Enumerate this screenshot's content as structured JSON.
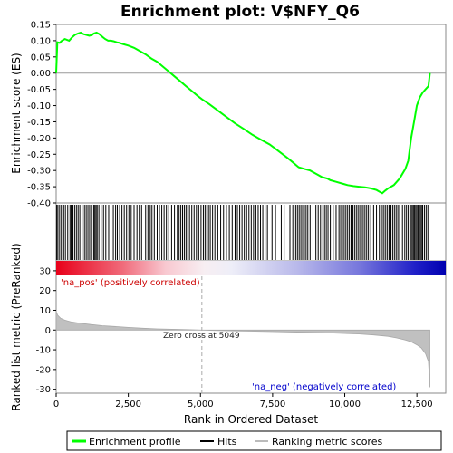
{
  "chart_data": {
    "type": "line",
    "title": "Enrichment plot: V$NFY_Q6",
    "xlabel": "Rank in Ordered Dataset",
    "xlim": [
      0,
      13500
    ],
    "x_ticks": [
      0,
      2500,
      5000,
      7500,
      10000,
      12500
    ],
    "x_tick_labels": [
      "0",
      "2,500",
      "5,000",
      "7,500",
      "10,000",
      "12,500"
    ],
    "grid": false,
    "legend_position": "bottom",
    "legend": [
      "Enrichment profile",
      "Hits",
      "Ranking metric scores"
    ],
    "enrichment_panel": {
      "ylabel": "Enrichment score (ES)",
      "ylim": [
        -0.4,
        0.15
      ],
      "y_ticks": [
        0.15,
        0.1,
        0.05,
        0.0,
        -0.05,
        -0.1,
        -0.15,
        -0.2,
        -0.25,
        -0.3,
        -0.35,
        -0.4
      ],
      "y_tick_labels": [
        "0.15",
        "0.10",
        "0.05",
        "0.00",
        "-0.05",
        "-0.10",
        "-0.15",
        "-0.20",
        "-0.25",
        "-0.30",
        "-0.35",
        "-0.40"
      ],
      "series": [
        {
          "name": "Enrichment profile",
          "color": "#00ff00",
          "x": [
            0,
            40,
            120,
            200,
            300,
            450,
            550,
            650,
            750,
            850,
            950,
            1050,
            1150,
            1250,
            1300,
            1400,
            1500,
            1600,
            1700,
            1800,
            1900,
            2000,
            2100,
            2200,
            2300,
            2500,
            2700,
            2900,
            3100,
            3300,
            3500,
            3700,
            3900,
            4100,
            4300,
            4500,
            4700,
            4900,
            5049,
            5300,
            5600,
            5900,
            6200,
            6500,
            6800,
            7100,
            7400,
            7700,
            8000,
            8200,
            8400,
            8600,
            8800,
            9000,
            9200,
            9400,
            9500,
            9700,
            9900,
            10100,
            10300,
            10500,
            10700,
            10900,
            11100,
            11200,
            11300,
            11400,
            11500,
            11600,
            11700,
            11800,
            11900,
            12000,
            12100,
            12200,
            12300,
            12400,
            12500,
            12600,
            12700,
            12800,
            12900,
            12950
          ],
          "values": [
            0.0,
            0.095,
            0.093,
            0.1,
            0.105,
            0.1,
            0.11,
            0.118,
            0.122,
            0.125,
            0.12,
            0.118,
            0.115,
            0.118,
            0.122,
            0.125,
            0.12,
            0.112,
            0.105,
            0.1,
            0.1,
            0.098,
            0.095,
            0.093,
            0.09,
            0.085,
            0.078,
            0.068,
            0.058,
            0.045,
            0.035,
            0.02,
            0.005,
            -0.01,
            -0.025,
            -0.04,
            -0.055,
            -0.07,
            -0.08,
            -0.095,
            -0.115,
            -0.135,
            -0.155,
            -0.172,
            -0.19,
            -0.205,
            -0.22,
            -0.24,
            -0.26,
            -0.275,
            -0.29,
            -0.295,
            -0.3,
            -0.31,
            -0.32,
            -0.325,
            -0.33,
            -0.335,
            -0.34,
            -0.345,
            -0.348,
            -0.35,
            -0.352,
            -0.355,
            -0.36,
            -0.365,
            -0.37,
            -0.362,
            -0.355,
            -0.35,
            -0.345,
            -0.335,
            -0.325,
            -0.31,
            -0.295,
            -0.27,
            -0.2,
            -0.15,
            -0.1,
            -0.075,
            -0.06,
            -0.05,
            -0.04,
            0.0
          ]
        }
      ]
    },
    "hits_panel": {
      "name": "Hits",
      "hit_ranks": [
        20,
        60,
        120,
        180,
        260,
        320,
        400,
        480,
        520,
        580,
        640,
        700,
        760,
        820,
        900,
        980,
        1040,
        1100,
        1160,
        1220,
        1300,
        1340,
        1380,
        1420,
        1480,
        1560,
        1640,
        1720,
        1820,
        1900,
        1980,
        2060,
        2120,
        2200,
        2280,
        2360,
        2440,
        2520,
        2600,
        2700,
        2800,
        2880,
        2960,
        3100,
        3180,
        3260,
        3320,
        3400,
        3500,
        3580,
        3660,
        3740,
        3820,
        3900,
        4000,
        4100,
        4200,
        4260,
        4320,
        4380,
        4440,
        4500,
        4560,
        4620,
        4700,
        4780,
        4860,
        4940,
        5020,
        5100,
        5160,
        5220,
        5280,
        5340,
        5420,
        5500,
        5600,
        5700,
        5800,
        5900,
        6000,
        6100,
        6200,
        6280,
        6360,
        6440,
        6520,
        6600,
        6680,
        6760,
        6840,
        6920,
        7000,
        7080,
        7160,
        7240,
        7320,
        7480,
        7600,
        7800,
        7900,
        8100,
        8200,
        8300,
        8360,
        8420,
        8480,
        8540,
        8600,
        8660,
        8720,
        8800,
        8900,
        9000,
        9080,
        9160,
        9240,
        9300,
        9360,
        9420,
        9500,
        9600,
        9700,
        9800,
        9860,
        9920,
        9980,
        10040,
        10100,
        10160,
        10220,
        10280,
        10340,
        10400,
        10460,
        10520,
        10580,
        10640,
        10700,
        10760,
        10820,
        10900,
        11000,
        11100,
        11200,
        11300,
        11360,
        11420,
        11480,
        11540,
        11600,
        11660,
        11720,
        11780,
        11840,
        11900,
        12000,
        12080,
        12140,
        12200,
        12260,
        12300,
        12340,
        12380,
        12420,
        12460,
        12500,
        12540,
        12580,
        12620,
        12660,
        12700,
        12760,
        12820,
        12880
      ]
    },
    "ranking_panel": {
      "name": "Ranking metric scores",
      "ylabel": "Ranked list metric (PreRanked)",
      "ylim": [
        -32,
        35
      ],
      "y_ticks": [
        30,
        20,
        10,
        0,
        -10,
        -20,
        -30
      ],
      "y_tick_labels": [
        "30",
        "20",
        "10",
        "0",
        "-10",
        "-20",
        "-30"
      ],
      "x": [
        0,
        50,
        150,
        300,
        500,
        800,
        1200,
        1600,
        2000,
        2500,
        3000,
        3500,
        4000,
        4500,
        5049,
        5500,
        6500,
        7500,
        8500,
        9500,
        10500,
        11000,
        11500,
        11800,
        12100,
        12300,
        12500,
        12650,
        12800,
        12900,
        12950
      ],
      "values": [
        9.5,
        7.5,
        6.0,
        5.0,
        4.2,
        3.5,
        2.8,
        2.2,
        1.8,
        1.3,
        0.9,
        0.6,
        0.4,
        0.2,
        0.0,
        -0.2,
        -0.5,
        -0.8,
        -1.1,
        -1.5,
        -2.0,
        -2.5,
        -3.2,
        -4.0,
        -5.0,
        -6.0,
        -7.5,
        -9.0,
        -12.0,
        -16.0,
        -29.0
      ],
      "zero_cross_rank": 5049,
      "annotations": {
        "positive": "'na_pos' (positively correlated)",
        "negative": "'na_neg' (negatively correlated)",
        "zero_cross": "Zero cross at 5049"
      }
    }
  }
}
